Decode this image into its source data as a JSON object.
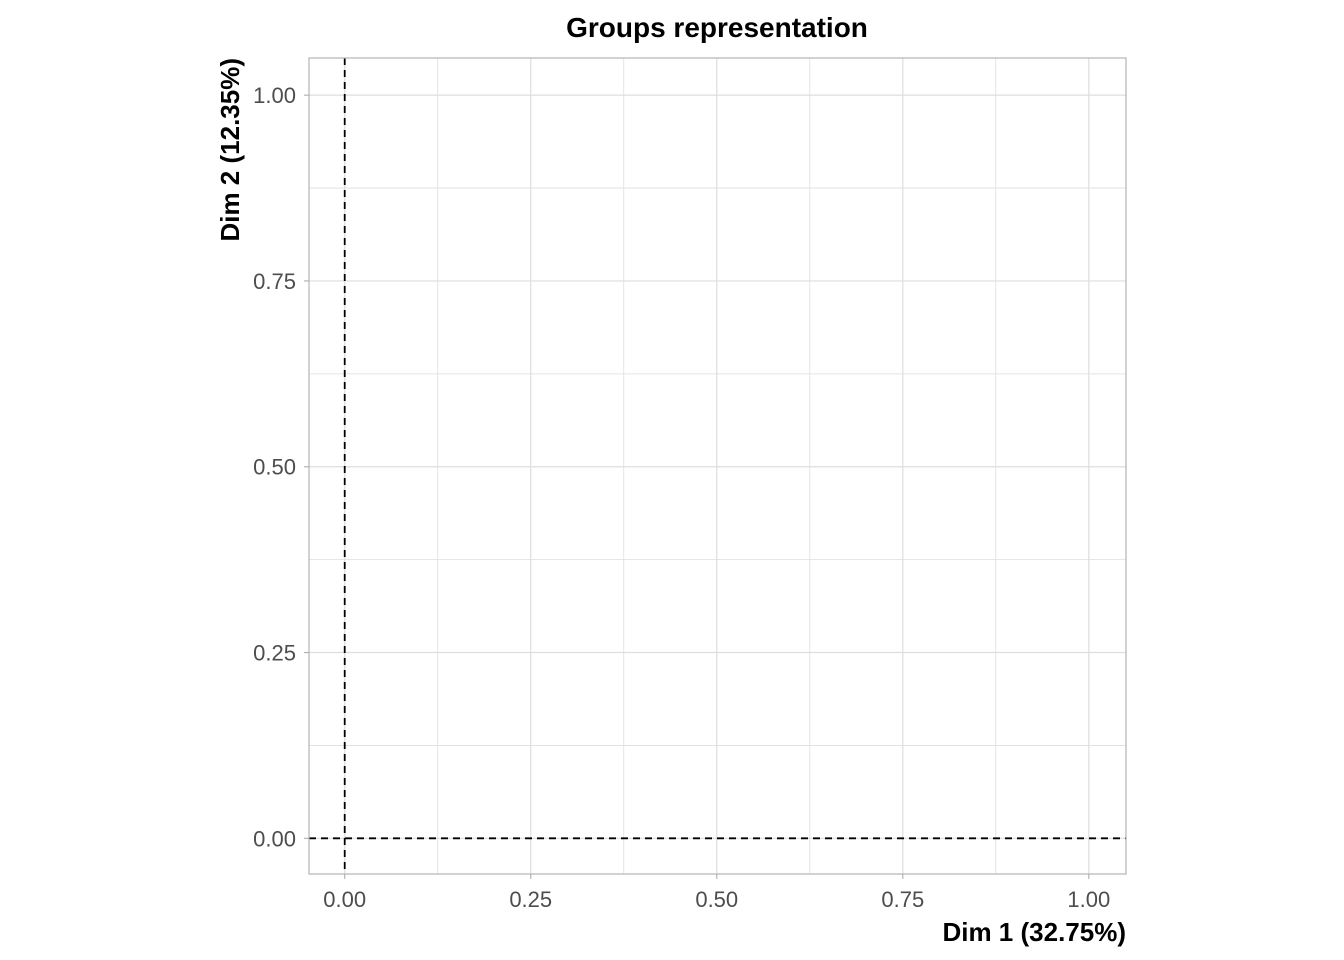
{
  "chart_data": {
    "type": "scatter",
    "title": "Groups representation",
    "xlabel": "Dim 1 (32.75%)",
    "ylabel": "Dim 2 (12.35%)",
    "xlim": [
      -0.048,
      1.05
    ],
    "ylim": [
      -0.048,
      1.05
    ],
    "x_ticks": [
      0.0,
      0.25,
      0.5,
      0.75,
      1.0
    ],
    "y_ticks": [
      0.0,
      0.25,
      0.5,
      0.75,
      1.0
    ],
    "x_tick_labels": [
      "0.00",
      "0.25",
      "0.50",
      "0.75",
      "1.00"
    ],
    "y_tick_labels": [
      "0.00",
      "0.25",
      "0.50",
      "0.75",
      "1.00"
    ],
    "minor_grid": [
      0.125,
      0.375,
      0.625,
      0.875
    ],
    "reference_lines": {
      "x": 0,
      "y": 0,
      "style": "dashed"
    },
    "grid": true,
    "legend": "none",
    "points": [],
    "colors": {
      "grid": "#dedede",
      "panel_border": "#b3b3b3",
      "reference": "#000000",
      "tick_text": "#4d4d4d"
    }
  }
}
